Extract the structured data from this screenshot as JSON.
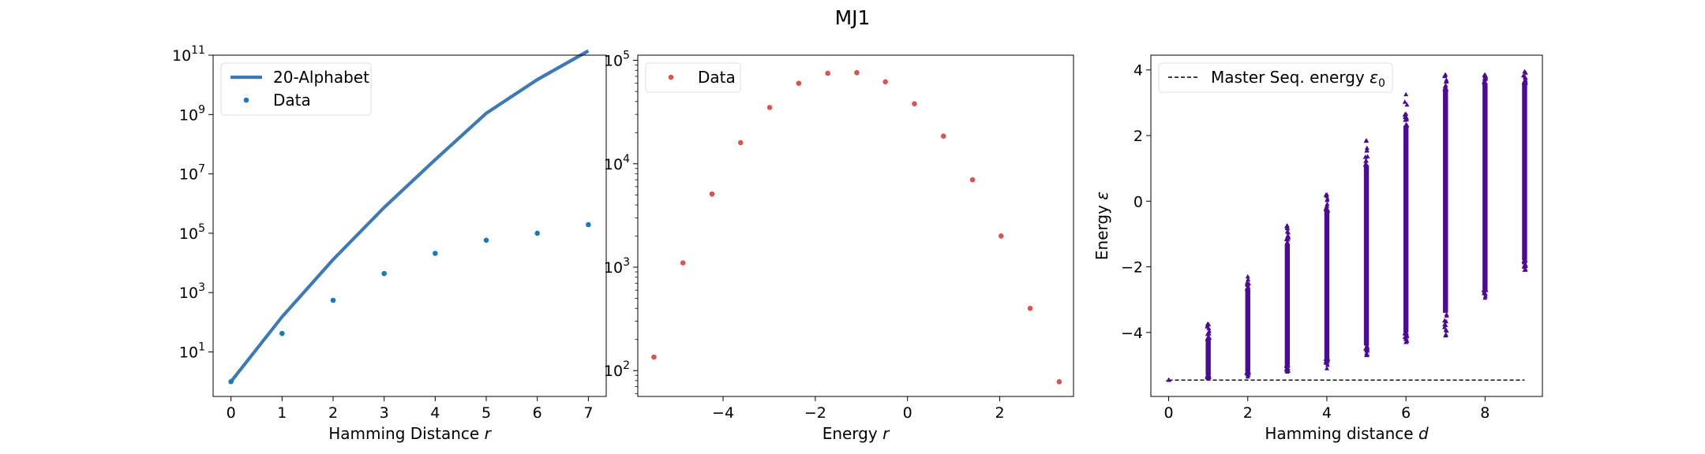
{
  "figure": {
    "title": "MJ1"
  },
  "chart_data": [
    {
      "type": "line",
      "xlabel": "Hamming Distance r",
      "ylabel": "",
      "xscale": "linear",
      "yscale": "log",
      "xlim": [
        -0.35,
        7.35
      ],
      "ylim_log10": [
        -0.5,
        11.0
      ],
      "xticks": [
        0,
        1,
        2,
        3,
        4,
        5,
        6,
        7
      ],
      "xtick_labels": [
        "0",
        "1",
        "2",
        "3",
        "4",
        "5",
        "6",
        "7"
      ],
      "yticks_log10": [
        1,
        3,
        5,
        7,
        9,
        11
      ],
      "ytick_base": "10",
      "ytick_exps": [
        "1",
        "3",
        "5",
        "7",
        "9",
        "11"
      ],
      "grid": false,
      "legend": "top-left",
      "series": [
        {
          "name": "20-Alphabet",
          "kind": "line",
          "color": "#3d7ab5",
          "x": [
            0,
            1,
            2,
            3,
            4,
            5,
            6,
            7
          ],
          "y": [
            1,
            152,
            12996,
            740772,
            30000000,
            1100000000,
            15000000000,
            140000000000
          ]
        },
        {
          "name": "Data",
          "kind": "scatter",
          "color": "#1f77b4",
          "x": [
            0,
            1,
            2,
            3,
            4,
            5,
            6,
            7
          ],
          "y": [
            1,
            42,
            550,
            4400,
            21000,
            58000,
            100000,
            195000
          ]
        }
      ]
    },
    {
      "type": "scatter",
      "xlabel": "Energy r",
      "ylabel": "",
      "xscale": "linear",
      "yscale": "log",
      "xlim": [
        -5.85,
        3.6
      ],
      "ylim_log10": [
        1.75,
        5.05
      ],
      "xticks": [
        -4,
        -2,
        0,
        2
      ],
      "xtick_labels": [
        "−4",
        "−2",
        "0",
        "2"
      ],
      "yticks_log10": [
        2,
        3,
        4,
        5
      ],
      "ytick_base": "10",
      "ytick_exps": [
        "2",
        "3",
        "4",
        "5"
      ],
      "grid": false,
      "legend": "top-left",
      "series": [
        {
          "name": "Data",
          "kind": "scatter",
          "color": "#d9534f",
          "x": [
            -5.5,
            -4.87,
            -4.24,
            -3.62,
            -2.99,
            -2.36,
            -1.73,
            -1.1,
            -0.48,
            0.15,
            0.78,
            1.41,
            2.03,
            2.66,
            3.29
          ],
          "y": [
            135,
            1100,
            5100,
            16000,
            35000,
            60000,
            75000,
            76000,
            62000,
            38000,
            18500,
            7000,
            2000,
            400,
            78
          ]
        }
      ]
    },
    {
      "type": "scatter",
      "xlabel": "Hamming distance d",
      "ylabel": "Energy ε",
      "xscale": "linear",
      "yscale": "linear",
      "xlim": [
        -0.45,
        9.45
      ],
      "ylim": [
        -5.95,
        4.45
      ],
      "xticks": [
        0,
        2,
        4,
        6,
        8
      ],
      "xtick_labels": [
        "0",
        "2",
        "4",
        "6",
        "8"
      ],
      "yticks": [
        -4,
        -2,
        0,
        2,
        4
      ],
      "ytick_labels": [
        "−4",
        "−2",
        "0",
        "2",
        "4"
      ],
      "grid": false,
      "legend": "top-left",
      "series": [
        {
          "name": "Master Seq. energy ε0",
          "kind": "dashed-line",
          "color": "#000000",
          "x": [
            0,
            9
          ],
          "y": [
            -5.45,
            -5.45
          ]
        },
        {
          "name": "",
          "kind": "strip",
          "color": "#4b0c8f",
          "x": [
            0,
            1,
            2,
            3,
            4,
            5,
            6,
            7,
            8,
            9
          ],
          "y_min": [
            -5.45,
            -5.4,
            -5.35,
            -5.2,
            -5.1,
            -4.7,
            -4.3,
            -4.1,
            -2.95,
            -2.1
          ],
          "y_max": [
            -5.45,
            -3.75,
            -2.3,
            -0.75,
            0.2,
            1.85,
            3.25,
            3.85,
            3.85,
            3.95
          ],
          "y_dense_min": [
            -5.45,
            -5.3,
            -5.2,
            -5.0,
            -4.8,
            -4.4,
            -4.0,
            -3.4,
            -2.7,
            -1.8
          ],
          "y_dense_max": [
            -5.45,
            -4.2,
            -2.7,
            -1.3,
            -0.3,
            1.1,
            2.3,
            3.4,
            3.6,
            3.6
          ]
        }
      ]
    }
  ]
}
